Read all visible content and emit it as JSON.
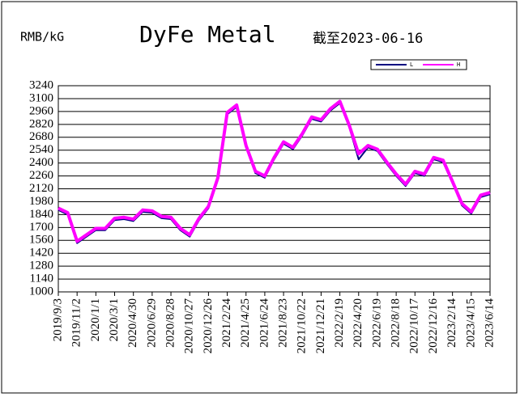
{
  "chart_data": {
    "type": "line",
    "title": "DyFe Metal",
    "unit_label": "RMB/kG",
    "date_note": "截至2023-06-16",
    "categories": [
      "2019/9/3",
      null,
      "2019/11/2",
      null,
      "2020/1/1",
      null,
      "2020/3/1",
      null,
      "2020/4/30",
      null,
      "2020/6/29",
      null,
      "2020/8/28",
      null,
      "2020/10/27",
      null,
      "2020/12/26",
      null,
      "2021/2/24",
      null,
      "2021/4/25",
      null,
      "2021/6/24",
      null,
      "2021/8/23",
      null,
      "2021/10/22",
      null,
      "2021/12/21",
      null,
      "2022/2/19",
      null,
      "2022/4/20",
      null,
      "2022/6/19",
      null,
      "2022/8/18",
      null,
      "2022/10/17",
      null,
      "2022/12/16",
      null,
      "2023/2/14",
      null,
      "2023/4/15",
      null,
      "2023/6/14"
    ],
    "series": [
      {
        "name": "L",
        "color": "#000080",
        "values": [
          1890,
          1840,
          1530,
          1600,
          1670,
          1670,
          1780,
          1790,
          1770,
          1870,
          1860,
          1800,
          1790,
          1670,
          1600,
          1780,
          1910,
          2220,
          2930,
          3010,
          2570,
          2290,
          2240,
          2440,
          2610,
          2550,
          2700,
          2880,
          2850,
          2970,
          3050,
          2790,
          2440,
          2570,
          2530,
          2390,
          2260,
          2150,
          2290,
          2260,
          2440,
          2410,
          2180,
          1940,
          1850,
          2030,
          2060
        ]
      },
      {
        "name": "H",
        "color": "#ff00ff",
        "values": [
          1910,
          1860,
          1550,
          1620,
          1690,
          1690,
          1800,
          1810,
          1790,
          1890,
          1880,
          1820,
          1810,
          1690,
          1620,
          1800,
          1930,
          2240,
          2950,
          3030,
          2590,
          2310,
          2260,
          2460,
          2630,
          2570,
          2720,
          2900,
          2870,
          2990,
          3070,
          2810,
          2500,
          2590,
          2550,
          2410,
          2280,
          2170,
          2310,
          2280,
          2460,
          2430,
          2200,
          1960,
          1870,
          2050,
          2080
        ]
      }
    ],
    "ylim": [
      1000,
      3240
    ],
    "yticks": [
      1000,
      1140,
      1280,
      1420,
      1560,
      1700,
      1840,
      1980,
      2120,
      2260,
      2400,
      2540,
      2680,
      2820,
      2960,
      3100,
      3240
    ],
    "grid": true,
    "legend": "top-right"
  }
}
